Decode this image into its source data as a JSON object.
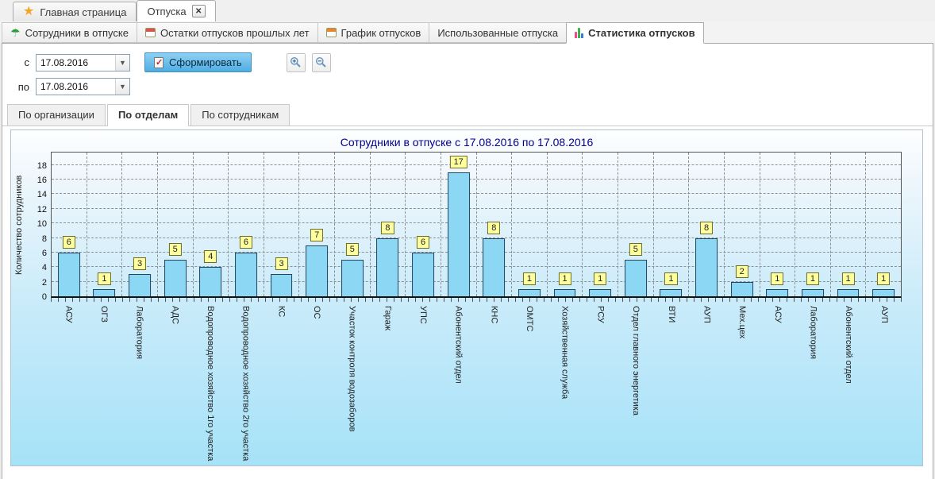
{
  "window_tabs": {
    "home": {
      "label": "Главная страница",
      "icon": "star-icon"
    },
    "active": {
      "label": "Отпуска",
      "icon": "close-icon"
    }
  },
  "module_tabs": [
    {
      "label": "Сотрудники в отпуске",
      "icon": "umbrella-icon"
    },
    {
      "label": "Остатки отпусков прошлых лет",
      "icon": "calendar-red-icon"
    },
    {
      "label": "График отпусков",
      "icon": "calendar-orange-icon"
    },
    {
      "label": "Использованные отпуска",
      "icon": null
    },
    {
      "label": "Статистика отпусков",
      "icon": "bar-chart-icon",
      "active": true
    }
  ],
  "filters": {
    "from_label": "с",
    "from_value": "17.08.2016",
    "to_label": "по",
    "to_value": "17.08.2016",
    "generate_label": "Сформировать",
    "generate_icon": "clipboard-check-icon",
    "zoom_icons": [
      "zoom-in-icon",
      "zoom-out-icon"
    ],
    "dropdown_icon": "chevron-down-icon"
  },
  "view_tabs": [
    {
      "label": "По организации"
    },
    {
      "label": "По отделам",
      "active": true
    },
    {
      "label": "По сотрудникам"
    }
  ],
  "chart_data": {
    "type": "bar",
    "title": "Сотрудники в отпуске с 17.08.2016 по 17.08.2016",
    "xlabel": "",
    "ylabel": "Количество сотрудников",
    "categories": [
      "АСУ",
      "ОГЗ",
      "Лаборатория",
      "АДС",
      "Водопроводное хозяйство 1го участка",
      "Водопроводное хозяйство 2го участка",
      "КС",
      "ОС",
      "Участок контроля водозаборов",
      "Гараж",
      "УПС",
      "Абонентский отдел",
      "КНС",
      "ОМТС",
      "Хозяйственная служба",
      "РСУ",
      "Отдел главного энергетика",
      "ВТИ",
      "АУП",
      "Мех.цех",
      "АСУ",
      "Лаборатория",
      "Абонентский отдел",
      "АУП"
    ],
    "values": [
      6,
      1,
      3,
      5,
      4,
      6,
      3,
      7,
      5,
      8,
      6,
      17,
      8,
      1,
      1,
      1,
      5,
      1,
      8,
      2,
      1,
      1,
      1,
      1
    ],
    "yticks": [
      0,
      2,
      4,
      6,
      8,
      10,
      12,
      14,
      16,
      18
    ],
    "ylim": [
      0,
      19.6
    ],
    "grid": true,
    "legend": "none",
    "bar_color": "#8BD7F4",
    "bar_border_color": "#24455F",
    "value_label_bg": "#FFFF9E",
    "title_color": "#00008B",
    "plot_bg_gradient": [
      "#FDFEFF",
      "#A6E2F8"
    ]
  }
}
